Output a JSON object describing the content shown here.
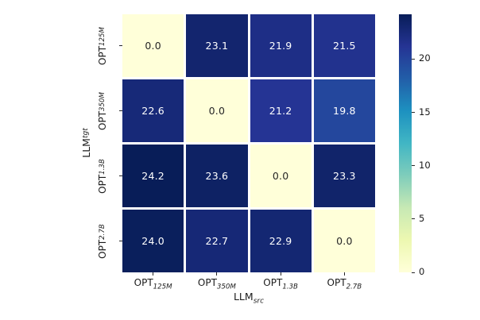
{
  "figure": {
    "background": "#ffffff",
    "text_color": "#1a1a1a",
    "tick_color": "#262626",
    "grid_line_color": "#ffffff"
  },
  "chart_data": {
    "type": "heatmap",
    "title": "",
    "x_axis": {
      "label": {
        "base": "LLM",
        "sub": "src"
      },
      "categories": [
        {
          "base": "OPT",
          "sub": "125M"
        },
        {
          "base": "OPT",
          "sub": "350M"
        },
        {
          "base": "OPT",
          "sub": "1.3B"
        },
        {
          "base": "OPT",
          "sub": "2.7B"
        }
      ]
    },
    "y_axis": {
      "label": {
        "base": "LLM",
        "sub": "tgt"
      },
      "categories": [
        {
          "base": "OPT",
          "sub": "125M"
        },
        {
          "base": "OPT",
          "sub": "350M"
        },
        {
          "base": "OPT",
          "sub": "1.3B"
        },
        {
          "base": "OPT",
          "sub": "2.7B"
        }
      ]
    },
    "values": [
      [
        0.0,
        23.1,
        21.9,
        21.5
      ],
      [
        22.6,
        0.0,
        21.2,
        19.8
      ],
      [
        24.2,
        23.6,
        0.0,
        23.3
      ],
      [
        24.0,
        22.7,
        22.9,
        0.0
      ]
    ],
    "value_decimals": 1,
    "vmin": 0,
    "vmax": 24.2,
    "colormap": {
      "name": "YlGnBu",
      "stops": [
        {
          "pos": 0.0,
          "hex": "#ffffd9"
        },
        {
          "pos": 0.125,
          "hex": "#edf8b1"
        },
        {
          "pos": 0.25,
          "hex": "#c7e9b4"
        },
        {
          "pos": 0.375,
          "hex": "#7fcdbb"
        },
        {
          "pos": 0.5,
          "hex": "#41b6c4"
        },
        {
          "pos": 0.625,
          "hex": "#1d91c0"
        },
        {
          "pos": 0.75,
          "hex": "#225ea8"
        },
        {
          "pos": 0.875,
          "hex": "#253494"
        },
        {
          "pos": 1.0,
          "hex": "#081d58"
        }
      ]
    },
    "colorbar": {
      "ticks": [
        0,
        5,
        10,
        15,
        20
      ]
    },
    "annotation_colors": {
      "on_light": "#262626",
      "on_dark": "#ffffff"
    },
    "legend_position": "right",
    "grid": false
  }
}
